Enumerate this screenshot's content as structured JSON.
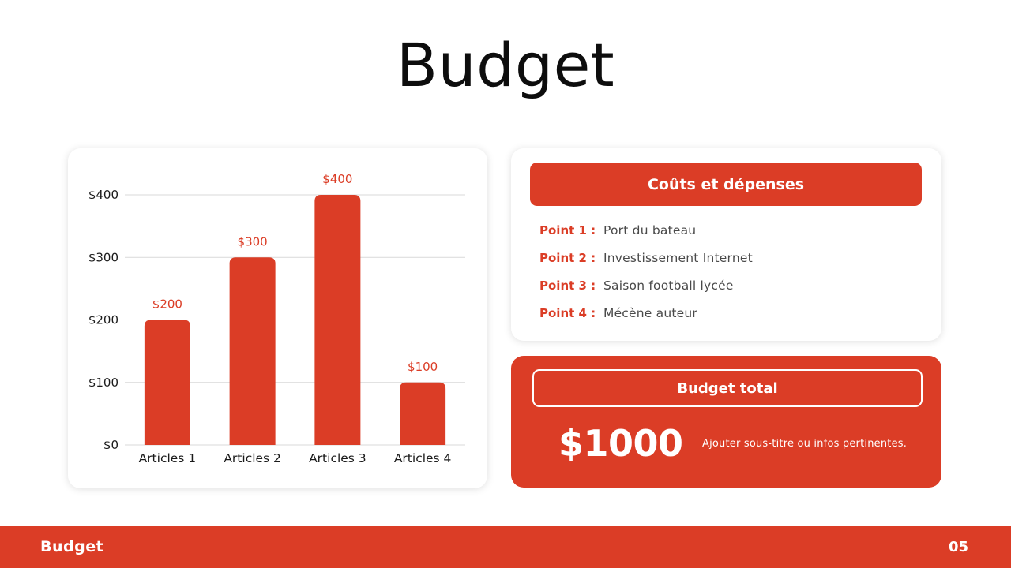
{
  "slide": {
    "title": "Budget",
    "accent_color": "#db3d26"
  },
  "chart_data": {
    "type": "bar",
    "categories": [
      "Articles 1",
      "Articles 2",
      "Articles 3",
      "Articles 4"
    ],
    "values": [
      200,
      300,
      400,
      100
    ],
    "data_labels": [
      "$200",
      "$300",
      "$400",
      "$100"
    ],
    "y_ticks": [
      0,
      100,
      200,
      300,
      400
    ],
    "y_tick_labels": [
      "$0",
      "$100",
      "$200",
      "$300",
      "$400"
    ],
    "ylim": [
      0,
      400
    ],
    "grid": true,
    "bar_color": "#db3d26",
    "title": "",
    "xlabel": "",
    "ylabel": ""
  },
  "costs": {
    "header": "Coûts et dépenses",
    "points": [
      {
        "label": "Point 1 :",
        "text": "Port du bateau"
      },
      {
        "label": "Point 2 :",
        "text": "Investissement Internet"
      },
      {
        "label": "Point 3 :",
        "text": "Saison football lycée"
      },
      {
        "label": "Point 4 :",
        "text": "Mécène auteur"
      }
    ]
  },
  "total": {
    "label": "Budget total",
    "amount": "$1000",
    "subtitle": "Ajouter sous-titre ou infos pertinentes."
  },
  "footer": {
    "title": "Budget",
    "page_number": "05"
  }
}
